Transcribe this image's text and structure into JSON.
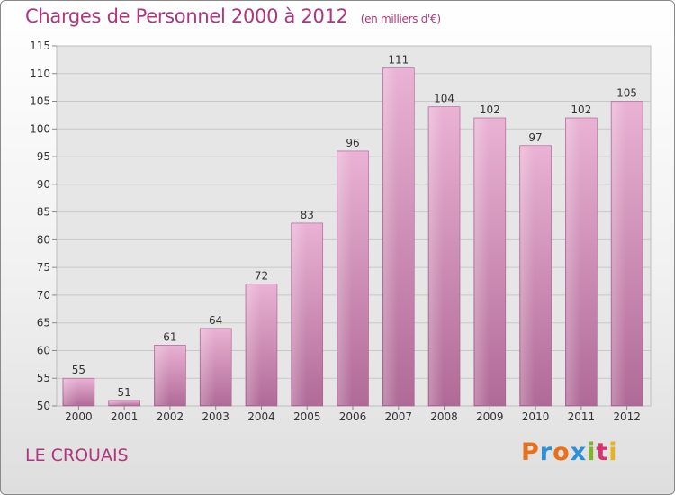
{
  "header": {
    "title": "Charges de Personnel 2000 à 2012",
    "subtitle": "(en milliers d'€)"
  },
  "footer": {
    "town": "LE CROUAIS",
    "logo_text": "Proxiti"
  },
  "colors": {
    "accent": "#b0357c",
    "bar_top": "#eab2d4",
    "bar_bottom": "#b06a97"
  },
  "chart_data": {
    "type": "bar",
    "title": "Charges de Personnel 2000 à 2012",
    "subtitle": "(en milliers d'€)",
    "categories": [
      "2000",
      "2001",
      "2002",
      "2003",
      "2004",
      "2005",
      "2006",
      "2007",
      "2008",
      "2009",
      "2010",
      "2011",
      "2012"
    ],
    "values": [
      55,
      51,
      61,
      64,
      72,
      83,
      96,
      111,
      104,
      102,
      97,
      102,
      105
    ],
    "ylim": [
      50,
      115
    ],
    "yticks": [
      50,
      55,
      60,
      65,
      70,
      75,
      80,
      85,
      90,
      95,
      100,
      105,
      110,
      115
    ],
    "grid": true,
    "data_labels": true
  }
}
